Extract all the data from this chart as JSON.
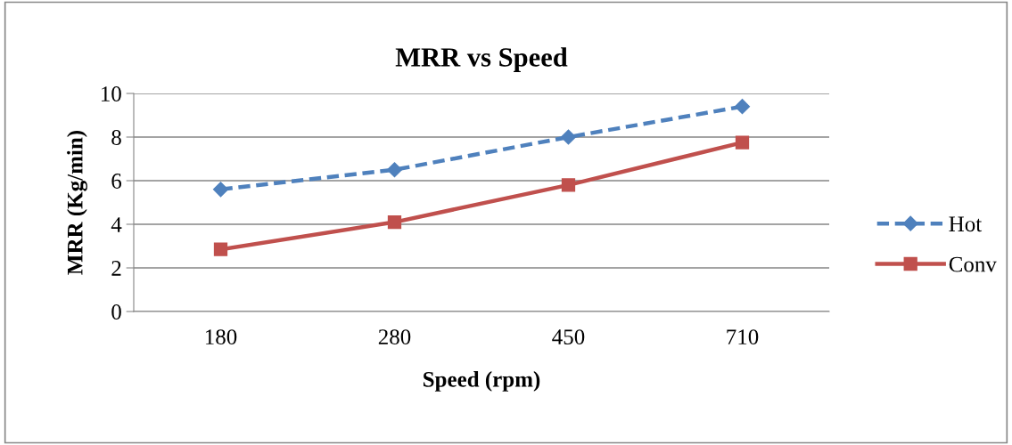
{
  "chart_data": {
    "type": "line",
    "title": "MRR vs Speed",
    "xlabel": "Speed (rpm)",
    "ylabel": "MRR (Kg/min)",
    "categories": [
      "180",
      "280",
      "450",
      "710"
    ],
    "series": [
      {
        "name": "Hot",
        "color": "#4f81bd",
        "marker": "diamond",
        "line_style": "dashed",
        "values": [
          5.6,
          6.5,
          8.0,
          9.4
        ]
      },
      {
        "name": "Conv",
        "color": "#c0504d",
        "marker": "square",
        "line_style": "solid",
        "values": [
          2.85,
          4.1,
          5.8,
          7.75
        ]
      }
    ],
    "ylim": [
      0,
      10
    ],
    "yticks": [
      0,
      2,
      4,
      6,
      8,
      10
    ],
    "grid": "y",
    "legend": "right"
  }
}
